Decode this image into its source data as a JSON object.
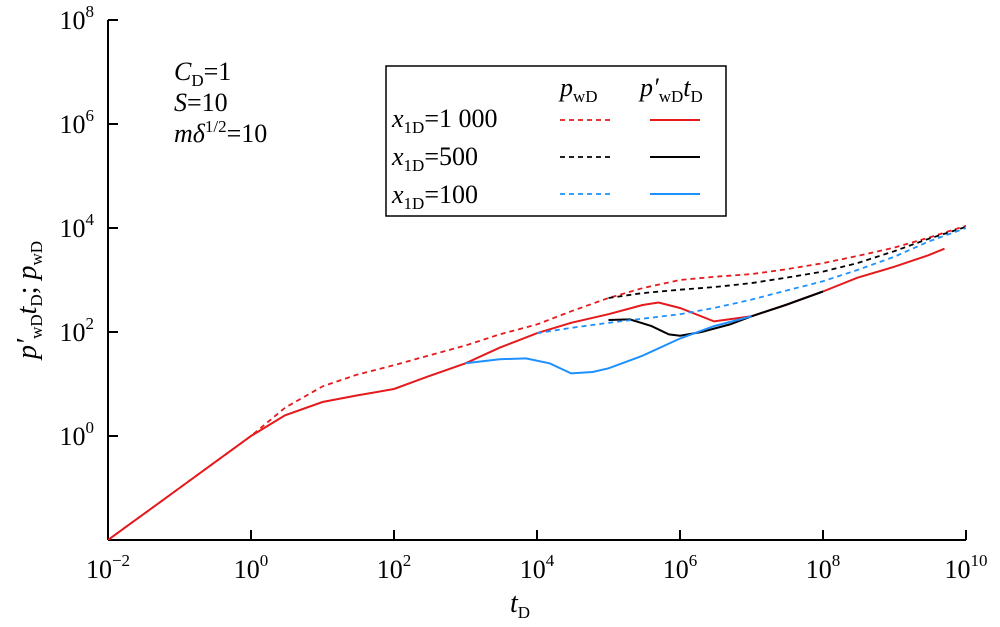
{
  "chart_data": {
    "type": "line",
    "xscale": "log",
    "yscale": "log",
    "xlim": [
      0.01,
      10000000000
    ],
    "ylim": [
      0.01,
      100000000
    ],
    "xticks": [
      {
        "value": 0.01,
        "base": "10",
        "exp": "−2"
      },
      {
        "value": 1,
        "base": "10",
        "exp": "0"
      },
      {
        "value": 100,
        "base": "10",
        "exp": "2"
      },
      {
        "value": 10000,
        "base": "10",
        "exp": "4"
      },
      {
        "value": 1000000,
        "base": "10",
        "exp": "6"
      },
      {
        "value": 100000000,
        "base": "10",
        "exp": "8"
      },
      {
        "value": 10000000000,
        "base": "10",
        "exp": "10"
      }
    ],
    "yticks": [
      {
        "value": 1,
        "base": "10",
        "exp": "0"
      },
      {
        "value": 100,
        "base": "10",
        "exp": "2"
      },
      {
        "value": 10000,
        "base": "10",
        "exp": "4"
      },
      {
        "value": 1000000,
        "base": "10",
        "exp": "6"
      },
      {
        "value": 100000000,
        "base": "10",
        "exp": "8"
      }
    ],
    "xlabel": {
      "main": "t",
      "sub": "D"
    },
    "ylabel": {
      "p1": "p′",
      "s1": "wD",
      "t1": "t",
      "s2": "D",
      "sep": "; ",
      "p2": "p",
      "s3": "wD"
    },
    "annotations": [
      {
        "main": "C",
        "sub": "D",
        "rest": "=1"
      },
      {
        "main": "S",
        "sub": "",
        "rest": "=10"
      },
      {
        "main": "mδ",
        "sup": "1/2",
        "rest": "=10"
      }
    ],
    "legend": {
      "placement": "top-center",
      "col1_header": {
        "main": "p",
        "sub": "wD"
      },
      "col2_header": {
        "main": "p′",
        "sub": "wD",
        "main2": "t",
        "sub2": "D"
      },
      "rows": [
        {
          "label_main": "x",
          "label_sub": "1D",
          "label_rest": "=1 000",
          "color": "#e41a1c"
        },
        {
          "label_main": "x",
          "label_sub": "1D",
          "label_rest": "=500",
          "color": "#000000"
        },
        {
          "label_main": "x",
          "label_sub": "1D",
          "label_rest": "=100",
          "color": "#1e90ff"
        }
      ]
    },
    "series": [
      {
        "name": "x1D=1 000 pwD",
        "style": "dashed",
        "color": "#e41a1c",
        "x": [
          0.01,
          0.02,
          0.05,
          0.1,
          0.3,
          1,
          3,
          10,
          30,
          100,
          300,
          1000,
          3000,
          10000,
          30000,
          100000,
          300000,
          1000000,
          3000000,
          10000000,
          30000000,
          100000000,
          300000000,
          1000000000,
          3000000000,
          10000000000
        ],
        "y": [
          0.01,
          0.02,
          0.05,
          0.1,
          0.3,
          1,
          3.5,
          9,
          15,
          23,
          35,
          55,
          90,
          140,
          250,
          450,
          700,
          1000,
          1150,
          1300,
          1600,
          2100,
          2900,
          4200,
          6500,
          11000
        ]
      },
      {
        "name": "x1D=1 000 p'wD tD",
        "style": "solid",
        "color": "#e41a1c",
        "x": [
          0.01,
          0.02,
          0.05,
          0.1,
          0.3,
          1,
          3,
          10,
          30,
          100,
          300,
          1000,
          3000,
          10000,
          30000,
          100000,
          300000,
          500000,
          1000000,
          3000000,
          10000000,
          30000000,
          100000000,
          300000000,
          1000000000,
          3000000000,
          5000000000
        ],
        "y": [
          0.01,
          0.02,
          0.05,
          0.1,
          0.3,
          1,
          2.5,
          4.5,
          6,
          8,
          14,
          25,
          50,
          95,
          150,
          220,
          330,
          370,
          290,
          160,
          200,
          330,
          600,
          1100,
          1800,
          3000,
          4000
        ]
      },
      {
        "name": "x1D=500 pwD",
        "style": "dashed",
        "color": "#000000",
        "x": [
          100000,
          300000,
          1000000,
          3000000,
          10000000,
          30000000,
          100000000,
          300000000,
          1000000000,
          3000000000,
          10000000000
        ],
        "y": [
          450,
          560,
          650,
          730,
          870,
          1100,
          1450,
          2100,
          3600,
          6200,
          10500
        ]
      },
      {
        "name": "x1D=500 p'wD tD",
        "style": "solid",
        "color": "#000000",
        "x": [
          100000,
          200000,
          400000,
          700000,
          1000000,
          2000000,
          5000000,
          10000000,
          30000000,
          100000000
        ],
        "y": [
          170,
          175,
          130,
          90,
          85,
          100,
          140,
          200,
          330,
          600
        ]
      },
      {
        "name": "x1D=100 pwD",
        "style": "dashed",
        "color": "#1e90ff",
        "x": [
          10000,
          30000,
          100000,
          300000,
          1000000,
          3000000,
          10000000,
          30000000,
          100000000,
          300000000,
          1000000000,
          3000000000,
          10000000000
        ],
        "y": [
          95,
          120,
          150,
          180,
          220,
          290,
          420,
          620,
          950,
          1550,
          2800,
          5500,
          10000
        ]
      },
      {
        "name": "x1D=100 p'wD tD",
        "style": "solid",
        "color": "#1e90ff",
        "x": [
          1000,
          3000,
          7000,
          15000,
          30000,
          60000,
          100000,
          300000,
          1000000,
          3000000,
          10000000
        ],
        "y": [
          25,
          30,
          31,
          25,
          16,
          17,
          20,
          35,
          75,
          130,
          200
        ]
      }
    ]
  }
}
